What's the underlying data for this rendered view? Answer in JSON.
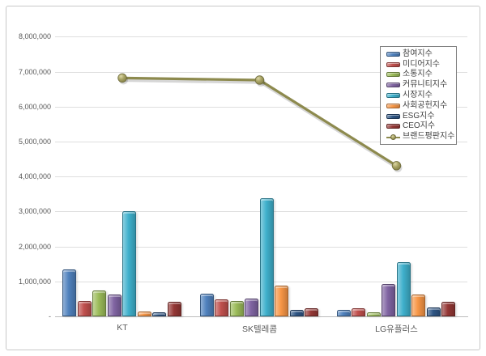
{
  "chart_data": {
    "type": "bar",
    "categories": [
      "KT",
      "SK텔레콤",
      "LG유플러스"
    ],
    "series": [
      {
        "name": "참여지수",
        "color": "#4f81bd",
        "values": [
          1350000,
          640000,
          180000
        ]
      },
      {
        "name": "미디어지수",
        "color": "#c0504d",
        "values": [
          430000,
          480000,
          240000
        ]
      },
      {
        "name": "소통지수",
        "color": "#9bbb59",
        "values": [
          750000,
          440000,
          120000
        ]
      },
      {
        "name": "커뮤니티지수",
        "color": "#8064a2",
        "values": [
          620000,
          510000,
          930000
        ]
      },
      {
        "name": "시장지수",
        "color": "#3fb0cc",
        "values": [
          3000000,
          3390000,
          1560000
        ]
      },
      {
        "name": "사회공헌지수",
        "color": "#f79646",
        "values": [
          140000,
          870000,
          620000
        ]
      },
      {
        "name": "ESG지수",
        "color": "#2e5584",
        "values": [
          120000,
          190000,
          250000
        ]
      },
      {
        "name": "CEO지수",
        "color": "#943735",
        "values": [
          410000,
          240000,
          410000
        ]
      }
    ],
    "line_series": {
      "name": "브랜드평판지수",
      "color": "#8d8a4e",
      "values": [
        6820000,
        6760000,
        4310000
      ]
    },
    "ylim": [
      0,
      8000000
    ],
    "ytick_step": 1000000,
    "yticks": [
      {
        "value": 0,
        "label": "-"
      },
      {
        "value": 1000000,
        "label": "1,000,000"
      },
      {
        "value": 2000000,
        "label": "2,000,000"
      },
      {
        "value": 3000000,
        "label": "3,000,000"
      },
      {
        "value": 4000000,
        "label": "4,000,000"
      },
      {
        "value": 5000000,
        "label": "5,000,000"
      },
      {
        "value": 6000000,
        "label": "6,000,000"
      },
      {
        "value": 7000000,
        "label": "7,000,000"
      },
      {
        "value": 8000000,
        "label": "8,000,000"
      }
    ],
    "grid": true,
    "legend_position": "top-right",
    "legend_items": [
      "참여지수",
      "미디어지수",
      "소통지수",
      "커뮤니티지수",
      "시장지수",
      "사회공헌지수",
      "ESG지수",
      "CEO지수",
      "브랜드평판지수"
    ]
  }
}
